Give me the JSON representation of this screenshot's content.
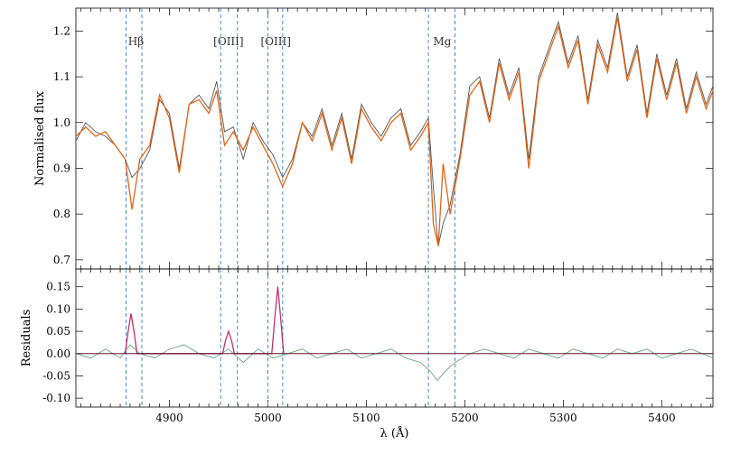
{
  "chart_data": [
    {
      "type": "line",
      "panel": "top",
      "ylabel": "Normalised flux",
      "xlim": [
        4805,
        5452
      ],
      "ylim": [
        0.68,
        1.25
      ],
      "y_ticks": [
        0.7,
        0.8,
        0.9,
        1.0,
        1.1,
        1.2
      ],
      "y_tick_labels": [
        "0.7",
        "0.8",
        "0.9",
        "1.0",
        "1.1",
        "1.2"
      ],
      "series": [
        {
          "color": "#555555",
          "x": [
            4805,
            4815,
            4825,
            4835,
            4845,
            4855,
            4862,
            4870,
            4880,
            4890,
            4900,
            4910,
            4920,
            4930,
            4940,
            4948,
            4956,
            4965,
            4975,
            4985,
            4995,
            5005,
            5015,
            5025,
            5035,
            5045,
            5055,
            5065,
            5075,
            5085,
            5095,
            5105,
            5115,
            5125,
            5135,
            5145,
            5155,
            5163,
            5168,
            5173,
            5178,
            5185,
            5195,
            5205,
            5215,
            5225,
            5235,
            5245,
            5255,
            5265,
            5275,
            5285,
            5295,
            5305,
            5315,
            5325,
            5335,
            5345,
            5355,
            5365,
            5375,
            5385,
            5395,
            5405,
            5415,
            5425,
            5435,
            5445,
            5452
          ],
          "y": [
            0.96,
            1.0,
            0.98,
            0.97,
            0.95,
            0.92,
            0.88,
            0.9,
            0.94,
            1.05,
            1.02,
            0.9,
            1.04,
            1.06,
            1.03,
            1.09,
            0.98,
            0.99,
            0.92,
            1.0,
            0.96,
            0.93,
            0.88,
            0.92,
            1.0,
            0.97,
            1.03,
            0.95,
            1.02,
            0.92,
            1.04,
            1.0,
            0.97,
            1.01,
            1.03,
            0.95,
            0.98,
            1.01,
            0.86,
            0.73,
            0.78,
            0.82,
            0.93,
            1.08,
            1.1,
            1.01,
            1.14,
            1.06,
            1.12,
            0.92,
            1.1,
            1.16,
            1.22,
            1.13,
            1.19,
            1.05,
            1.18,
            1.12,
            1.24,
            1.1,
            1.17,
            1.02,
            1.15,
            1.06,
            1.14,
            1.03,
            1.11,
            1.04,
            1.08
          ]
        },
        {
          "color": "#e36414",
          "x": [
            4805,
            4815,
            4825,
            4835,
            4845,
            4855,
            4862,
            4870,
            4880,
            4890,
            4900,
            4910,
            4920,
            4930,
            4940,
            4948,
            4956,
            4965,
            4975,
            4985,
            4995,
            5005,
            5015,
            5025,
            5035,
            5045,
            5055,
            5065,
            5075,
            5085,
            5095,
            5105,
            5115,
            5125,
            5135,
            5145,
            5155,
            5163,
            5168,
            5173,
            5178,
            5185,
            5195,
            5205,
            5215,
            5225,
            5235,
            5245,
            5255,
            5265,
            5275,
            5285,
            5295,
            5305,
            5315,
            5325,
            5335,
            5345,
            5355,
            5365,
            5375,
            5385,
            5395,
            5405,
            5415,
            5425,
            5435,
            5445,
            5452
          ],
          "y": [
            0.97,
            0.99,
            0.97,
            0.98,
            0.95,
            0.92,
            0.81,
            0.92,
            0.95,
            1.06,
            1.01,
            0.89,
            1.04,
            1.05,
            1.02,
            1.07,
            0.95,
            0.98,
            0.94,
            0.99,
            0.95,
            0.91,
            0.86,
            0.91,
            1.0,
            0.96,
            1.02,
            0.94,
            1.01,
            0.91,
            1.03,
            0.99,
            0.96,
            1.0,
            1.02,
            0.94,
            0.97,
            1.0,
            0.78,
            0.73,
            0.91,
            0.8,
            0.92,
            1.06,
            1.09,
            1.0,
            1.13,
            1.05,
            1.11,
            0.9,
            1.09,
            1.15,
            1.21,
            1.12,
            1.18,
            1.04,
            1.17,
            1.11,
            1.23,
            1.09,
            1.16,
            1.01,
            1.14,
            1.05,
            1.13,
            1.02,
            1.1,
            1.03,
            1.07
          ]
        }
      ],
      "annotations": [
        {
          "text": "Hβ",
          "x": 4866
        },
        {
          "text": "[OIII]",
          "x": 4960
        },
        {
          "text": "[OIII]",
          "x": 5008
        },
        {
          "text": "Mg",
          "x": 5177
        }
      ],
      "vlines": [
        4856,
        4872,
        4952,
        4969,
        5000,
        5015,
        5163,
        5190
      ]
    },
    {
      "type": "line",
      "panel": "bottom",
      "xlabel": "λ (Å)",
      "ylabel": "Residuals",
      "xlim": [
        4805,
        5452
      ],
      "ylim": [
        -0.12,
        0.19
      ],
      "x_ticks": [
        4900,
        5000,
        5100,
        5200,
        5300,
        5400
      ],
      "x_tick_labels": [
        "4900",
        "5000",
        "5100",
        "5200",
        "5300",
        "5400"
      ],
      "y_ticks": [
        -0.1,
        -0.05,
        0.0,
        0.05,
        0.1,
        0.15
      ],
      "y_tick_labels": [
        "-0.10",
        "-0.05",
        "0.00",
        "0.05",
        "0.10",
        "0.15"
      ],
      "zero_line": 0.0,
      "series": [
        {
          "color": "#6aa681",
          "x": [
            4805,
            4820,
            4835,
            4850,
            4860,
            4870,
            4885,
            4900,
            4915,
            4930,
            4945,
            4960,
            4975,
            4990,
            5005,
            5020,
            5035,
            5050,
            5065,
            5080,
            5095,
            5110,
            5125,
            5140,
            5155,
            5165,
            5172,
            5180,
            5190,
            5205,
            5220,
            5235,
            5250,
            5265,
            5280,
            5295,
            5310,
            5325,
            5340,
            5355,
            5370,
            5385,
            5400,
            5415,
            5430,
            5452
          ],
          "y": [
            0.0,
            -0.01,
            0.01,
            -0.01,
            0.02,
            0.0,
            -0.01,
            0.01,
            0.02,
            0.0,
            -0.01,
            0.01,
            -0.02,
            0.01,
            -0.01,
            0.0,
            0.01,
            -0.01,
            0.0,
            0.01,
            -0.01,
            0.0,
            0.01,
            -0.01,
            -0.02,
            -0.04,
            -0.06,
            -0.04,
            -0.02,
            0.0,
            0.01,
            0.0,
            -0.01,
            0.01,
            0.0,
            -0.01,
            0.01,
            0.0,
            -0.01,
            0.01,
            0.0,
            0.01,
            -0.01,
            0.0,
            0.01,
            -0.01
          ]
        },
        {
          "color": "#c0306e",
          "x": [
            4855,
            4858,
            4861,
            4864,
            4867,
            4945,
            4954,
            4957,
            4960,
            4963,
            4966,
            4998,
            5004,
            5007,
            5010,
            5013,
            5016
          ],
          "y": [
            0.0,
            0.05,
            0.09,
            0.05,
            0.0,
            0.0,
            0.0,
            0.03,
            0.05,
            0.03,
            0.0,
            0.0,
            0.0,
            0.08,
            0.15,
            0.08,
            0.0
          ]
        }
      ],
      "vlines": [
        4856,
        4872,
        4952,
        4969,
        5000,
        5015,
        5163,
        5190
      ]
    }
  ]
}
